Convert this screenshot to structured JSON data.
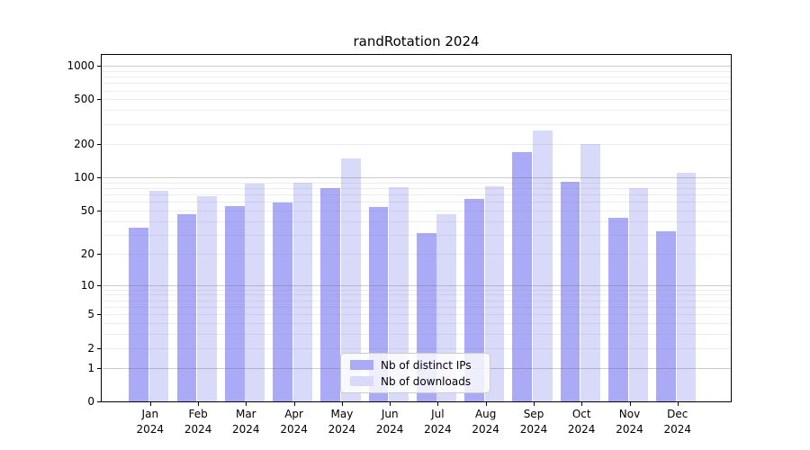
{
  "chart_data": {
    "type": "bar",
    "title": "randRotation 2024",
    "categories": [
      "Jan",
      "Feb",
      "Mar",
      "Apr",
      "May",
      "Jun",
      "Jul",
      "Aug",
      "Sep",
      "Oct",
      "Nov",
      "Dec"
    ],
    "x_tick_year": "2024",
    "series": [
      {
        "name": "Nb of distinct IPs",
        "color": "#aaaaf7",
        "values": [
          35,
          46,
          55,
          59,
          79,
          54,
          31,
          64,
          169,
          91,
          43,
          32
        ]
      },
      {
        "name": "Nb of downloads",
        "color": "#d9d9f9",
        "values": [
          76,
          67,
          88,
          90,
          148,
          81,
          46,
          83,
          261,
          199,
          80,
          110
        ]
      }
    ],
    "y_ticks": [
      0,
      1,
      2,
      5,
      10,
      20,
      50,
      100,
      200,
      500,
      1000
    ],
    "y_scale": "log10(value+1)",
    "ylim": [
      0,
      1250
    ],
    "grid": "on",
    "gridline_major_at": [
      1,
      10,
      100,
      1000
    ],
    "legend_position": "bottom-center",
    "xlabel": "",
    "ylabel": ""
  }
}
